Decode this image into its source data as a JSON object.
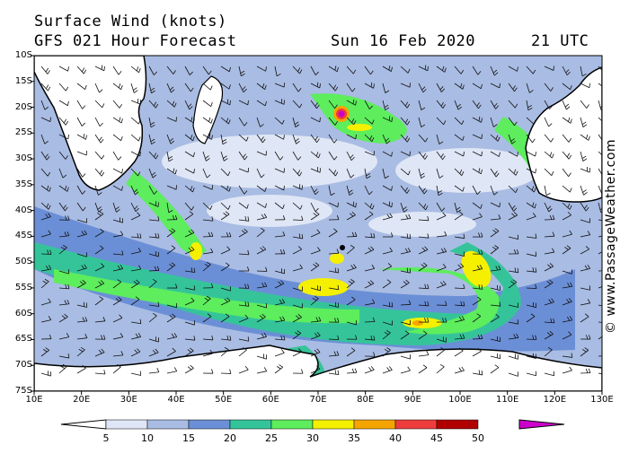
{
  "header": {
    "title": "Surface Wind (knots)",
    "forecast": "GFS 021 Hour Forecast",
    "date": "Sun 16 Feb 2020",
    "time": "21 UTC"
  },
  "credit": "© www.PassageWeather.com",
  "axes": {
    "lat_labels": [
      "10S",
      "15S",
      "20S",
      "25S",
      "30S",
      "35S",
      "40S",
      "45S",
      "50S",
      "55S",
      "60S",
      "65S",
      "70S",
      "75S"
    ],
    "lon_labels": [
      "10E",
      "20E",
      "30E",
      "40E",
      "50E",
      "60E",
      "70E",
      "80E",
      "90E",
      "100E",
      "110E",
      "120E",
      "130E"
    ]
  },
  "legend": {
    "unit": "knots",
    "ticks": [
      "5",
      "10",
      "15",
      "20",
      "25",
      "30",
      "35",
      "40",
      "45",
      "50"
    ],
    "colors": [
      "#ffffff",
      "#dfe6f5",
      "#a9bce3",
      "#6b8fd6",
      "#35c49a",
      "#5ded5d",
      "#f5f000",
      "#f5a500",
      "#ee3c3c",
      "#b10000",
      "#cc00cc"
    ]
  },
  "features": {
    "cyclone_marker": "cyclone-center",
    "land_color": "#ffffff",
    "coast_color": "#000000"
  }
}
